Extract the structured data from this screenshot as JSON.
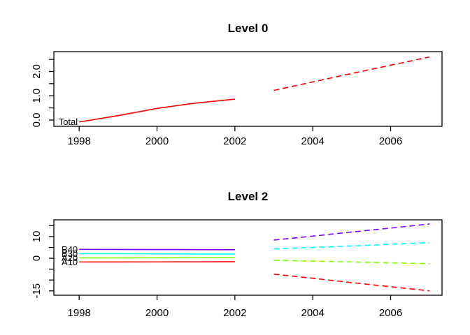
{
  "figure": {
    "background": "#ffffff",
    "axis_color": "#000000",
    "text_color": "#000000"
  },
  "chart_data": [
    {
      "type": "line",
      "title": "Level 0",
      "xlabel": "",
      "ylabel": "",
      "grid": false,
      "legend_position": "none",
      "xlim": [
        1997.35,
        2007.32
      ],
      "ylim": [
        -0.26,
        2.82
      ],
      "x_ticks": [
        {
          "v": 1998,
          "label": "1998"
        },
        {
          "v": 2000,
          "label": "2000"
        },
        {
          "v": 2002,
          "label": "2002"
        },
        {
          "v": 2004,
          "label": "2004"
        },
        {
          "v": 2006,
          "label": "2006"
        }
      ],
      "y_ticks": [
        {
          "v": 0.0,
          "label": "0.0"
        },
        {
          "v": 0.5,
          "label": ""
        },
        {
          "v": 1.0,
          "label": "1.0"
        },
        {
          "v": 1.5,
          "label": ""
        },
        {
          "v": 2.0,
          "label": "2.0"
        },
        {
          "v": 2.5,
          "label": ""
        }
      ],
      "series": [
        {
          "name": "Total",
          "color": "#FF0000",
          "history": {
            "x": [
              1998,
              1999,
              2000,
              2001,
              2002
            ],
            "y": [
              -0.08,
              0.18,
              0.48,
              0.7,
              0.86
            ]
          },
          "forecast": {
            "x": [
              2003,
              2004,
              2005,
              2006,
              2007
            ],
            "y": [
              1.22,
              1.57,
              1.92,
              2.26,
              2.6
            ],
            "style": "dashed"
          }
        }
      ]
    },
    {
      "type": "line",
      "title": "Level 2",
      "xlabel": "",
      "ylabel": "",
      "grid": false,
      "legend_position": "none",
      "xlim": [
        1997.35,
        2007.32
      ],
      "ylim": [
        -17.0,
        17.7
      ],
      "x_ticks": [
        {
          "v": 1998,
          "label": "1998"
        },
        {
          "v": 2000,
          "label": "2000"
        },
        {
          "v": 2002,
          "label": "2002"
        },
        {
          "v": 2004,
          "label": "2004"
        },
        {
          "v": 2006,
          "label": "2006"
        }
      ],
      "y_ticks": [
        {
          "v": 15,
          "label": ""
        },
        {
          "v": 10,
          "label": "10"
        },
        {
          "v": 5,
          "label": ""
        },
        {
          "v": 0,
          "label": "0"
        },
        {
          "v": -5,
          "label": ""
        },
        {
          "v": -10,
          "label": ""
        },
        {
          "v": -15,
          "label": "-15"
        }
      ],
      "series": [
        {
          "name": "A10",
          "color": "#FF0000",
          "history": {
            "x": [
              1998,
              1999,
              2000,
              2001,
              2002
            ],
            "y": [
              -1.7,
              -1.68,
              -1.66,
              -1.63,
              -1.6
            ]
          },
          "forecast": {
            "x": [
              2003,
              2004,
              2005,
              2006,
              2007
            ],
            "y": [
              -7.3,
              -9.2,
              -11.2,
              -13.1,
              -15.0
            ],
            "style": "dashed"
          }
        },
        {
          "name": "A20",
          "color": "#80FF00",
          "history": {
            "x": [
              1998,
              1999,
              2000,
              2001,
              2002
            ],
            "y": [
              0.2,
              0.22,
              0.24,
              0.27,
              0.3
            ]
          },
          "forecast": {
            "x": [
              2003,
              2004,
              2005,
              2006,
              2007
            ],
            "y": [
              -0.9,
              -1.3,
              -1.7,
              -2.1,
              -2.5
            ],
            "style": "dashed"
          }
        },
        {
          "name": "B30",
          "color": "#00FFFF",
          "history": {
            "x": [
              1998,
              1999,
              2000,
              2001,
              2002
            ],
            "y": [
              2.1,
              2.08,
              2.05,
              2.0,
              1.95
            ]
          },
          "forecast": {
            "x": [
              2003,
              2004,
              2005,
              2006,
              2007
            ],
            "y": [
              4.3,
              5.0,
              5.7,
              6.45,
              7.2
            ],
            "style": "dashed"
          }
        },
        {
          "name": "B40",
          "color": "#8000FF",
          "history": {
            "x": [
              1998,
              1999,
              2000,
              2001,
              2002
            ],
            "y": [
              4.1,
              4.05,
              4.02,
              4.0,
              3.95
            ]
          },
          "forecast": {
            "x": [
              2003,
              2004,
              2005,
              2006,
              2007
            ],
            "y": [
              8.4,
              10.2,
              12.1,
              13.9,
              15.8
            ],
            "style": "dashed"
          }
        }
      ]
    }
  ]
}
